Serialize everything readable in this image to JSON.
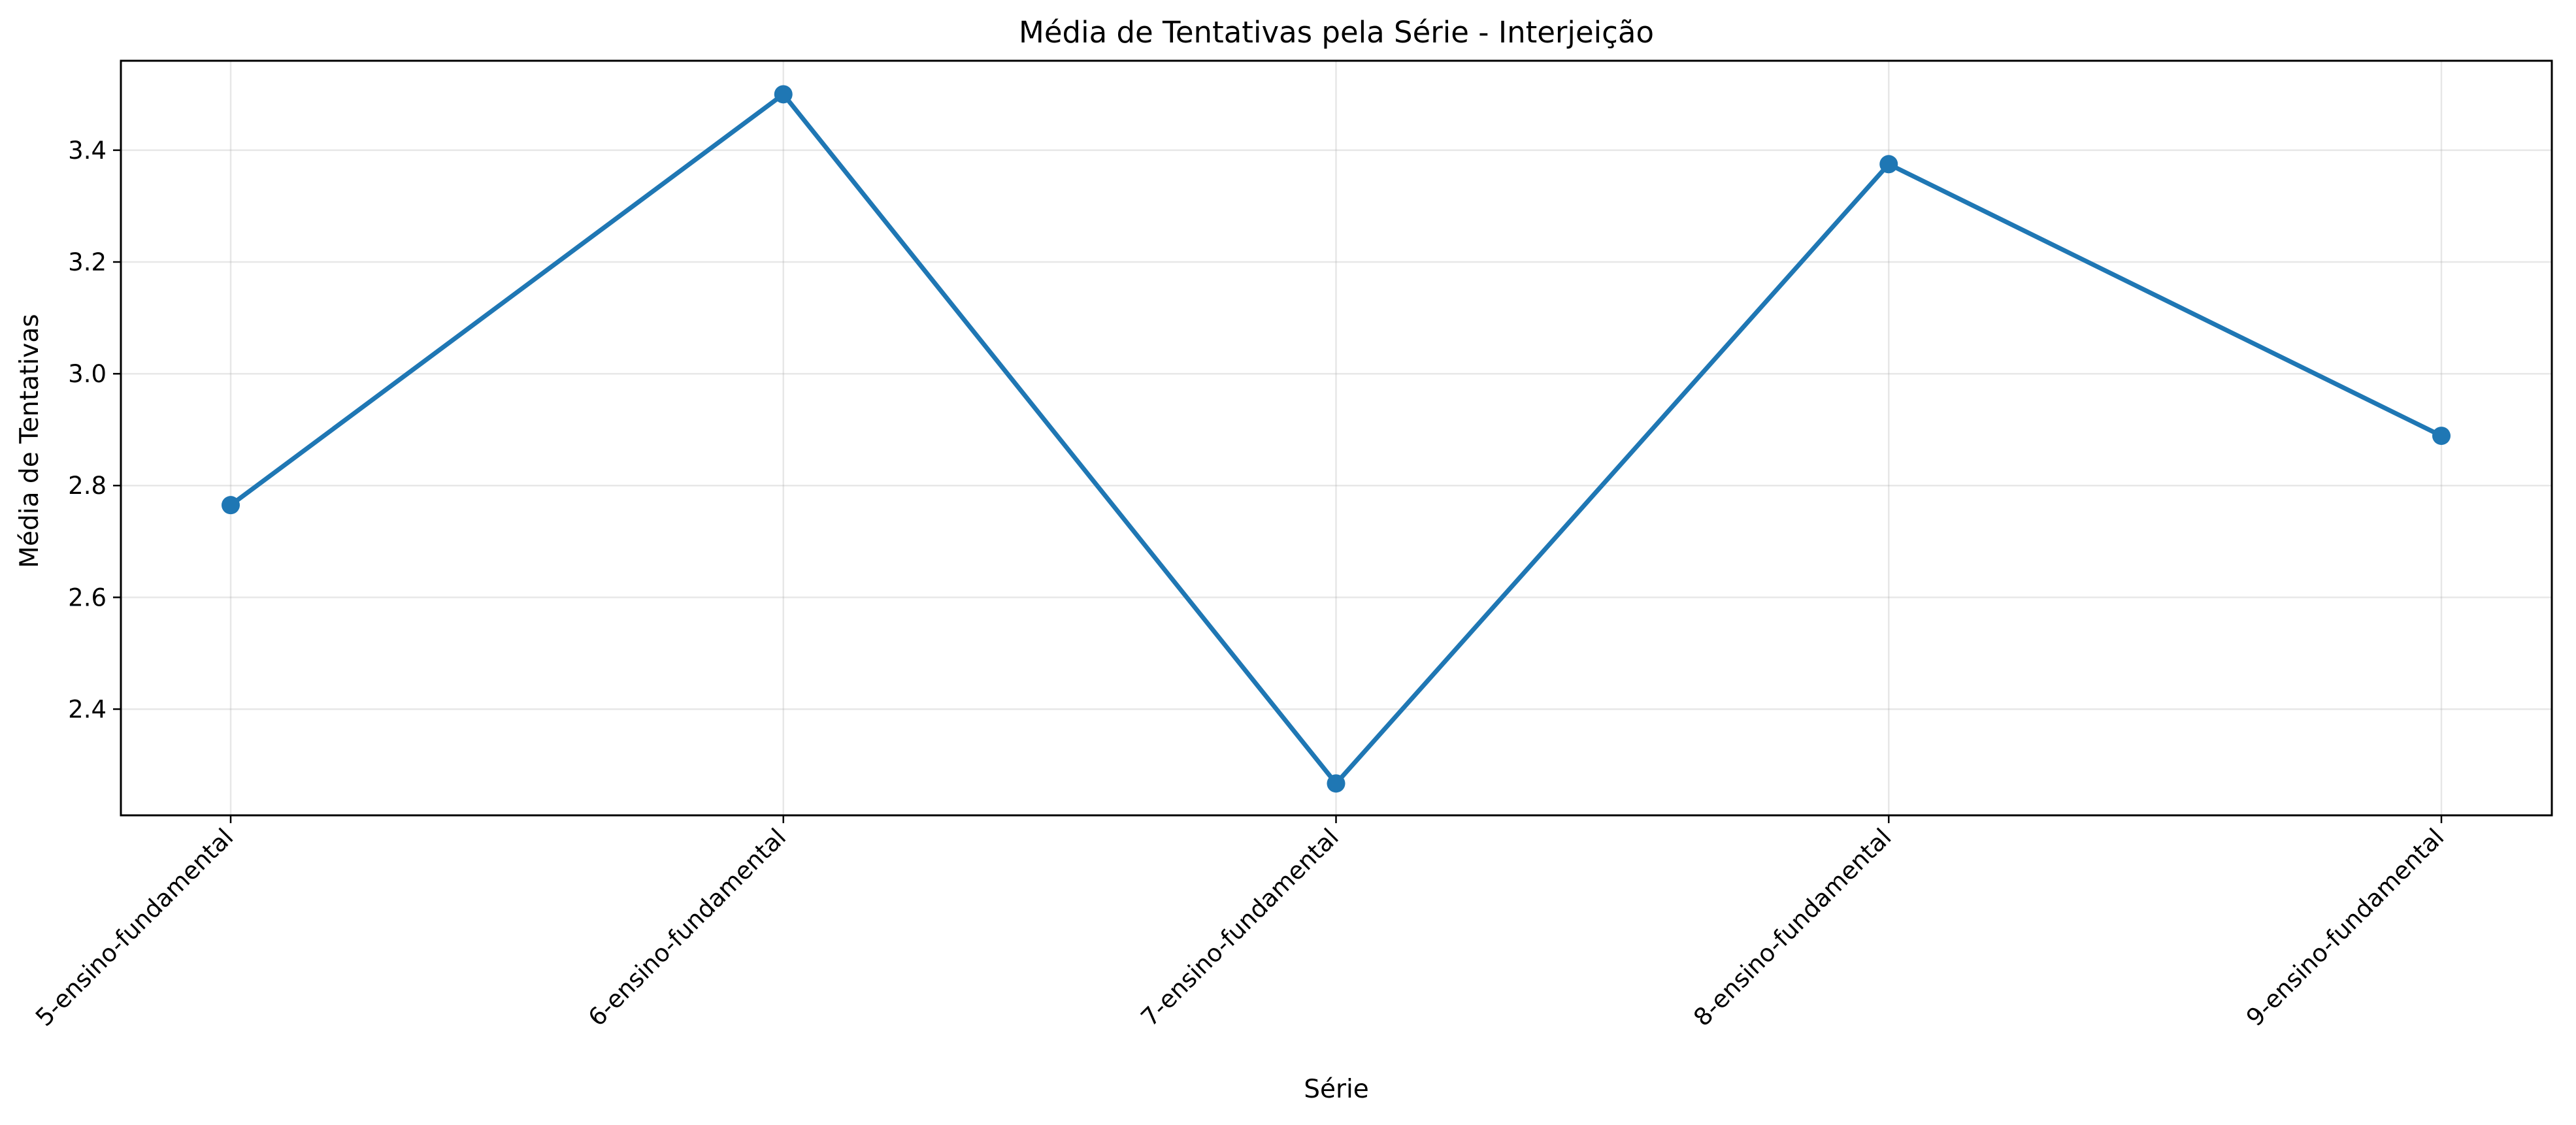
{
  "chart_data": {
    "type": "line",
    "title": "Média de Tentativas pela Série - Interjeição",
    "xlabel": "Série",
    "ylabel": "Média de Tentativas",
    "categories": [
      "5-ensino-fundamental",
      "6-ensino-fundamental",
      "7-ensino-fundamental",
      "8-ensino-fundamental",
      "9-ensino-fundamental"
    ],
    "series": [
      {
        "values": [
          2.765,
          3.5,
          2.267,
          3.375,
          2.889
        ],
        "color": "#1f77b4",
        "marker": "circle"
      }
    ],
    "ylim": [
      2.21,
      3.56
    ],
    "yticks": [
      2.4,
      2.6,
      2.8,
      3.0,
      3.2,
      3.4
    ],
    "ytick_labels": [
      "2.4",
      "2.6",
      "2.8",
      "3.0",
      "3.2",
      "3.4"
    ],
    "grid": true,
    "x_tick_rotation": 45
  }
}
